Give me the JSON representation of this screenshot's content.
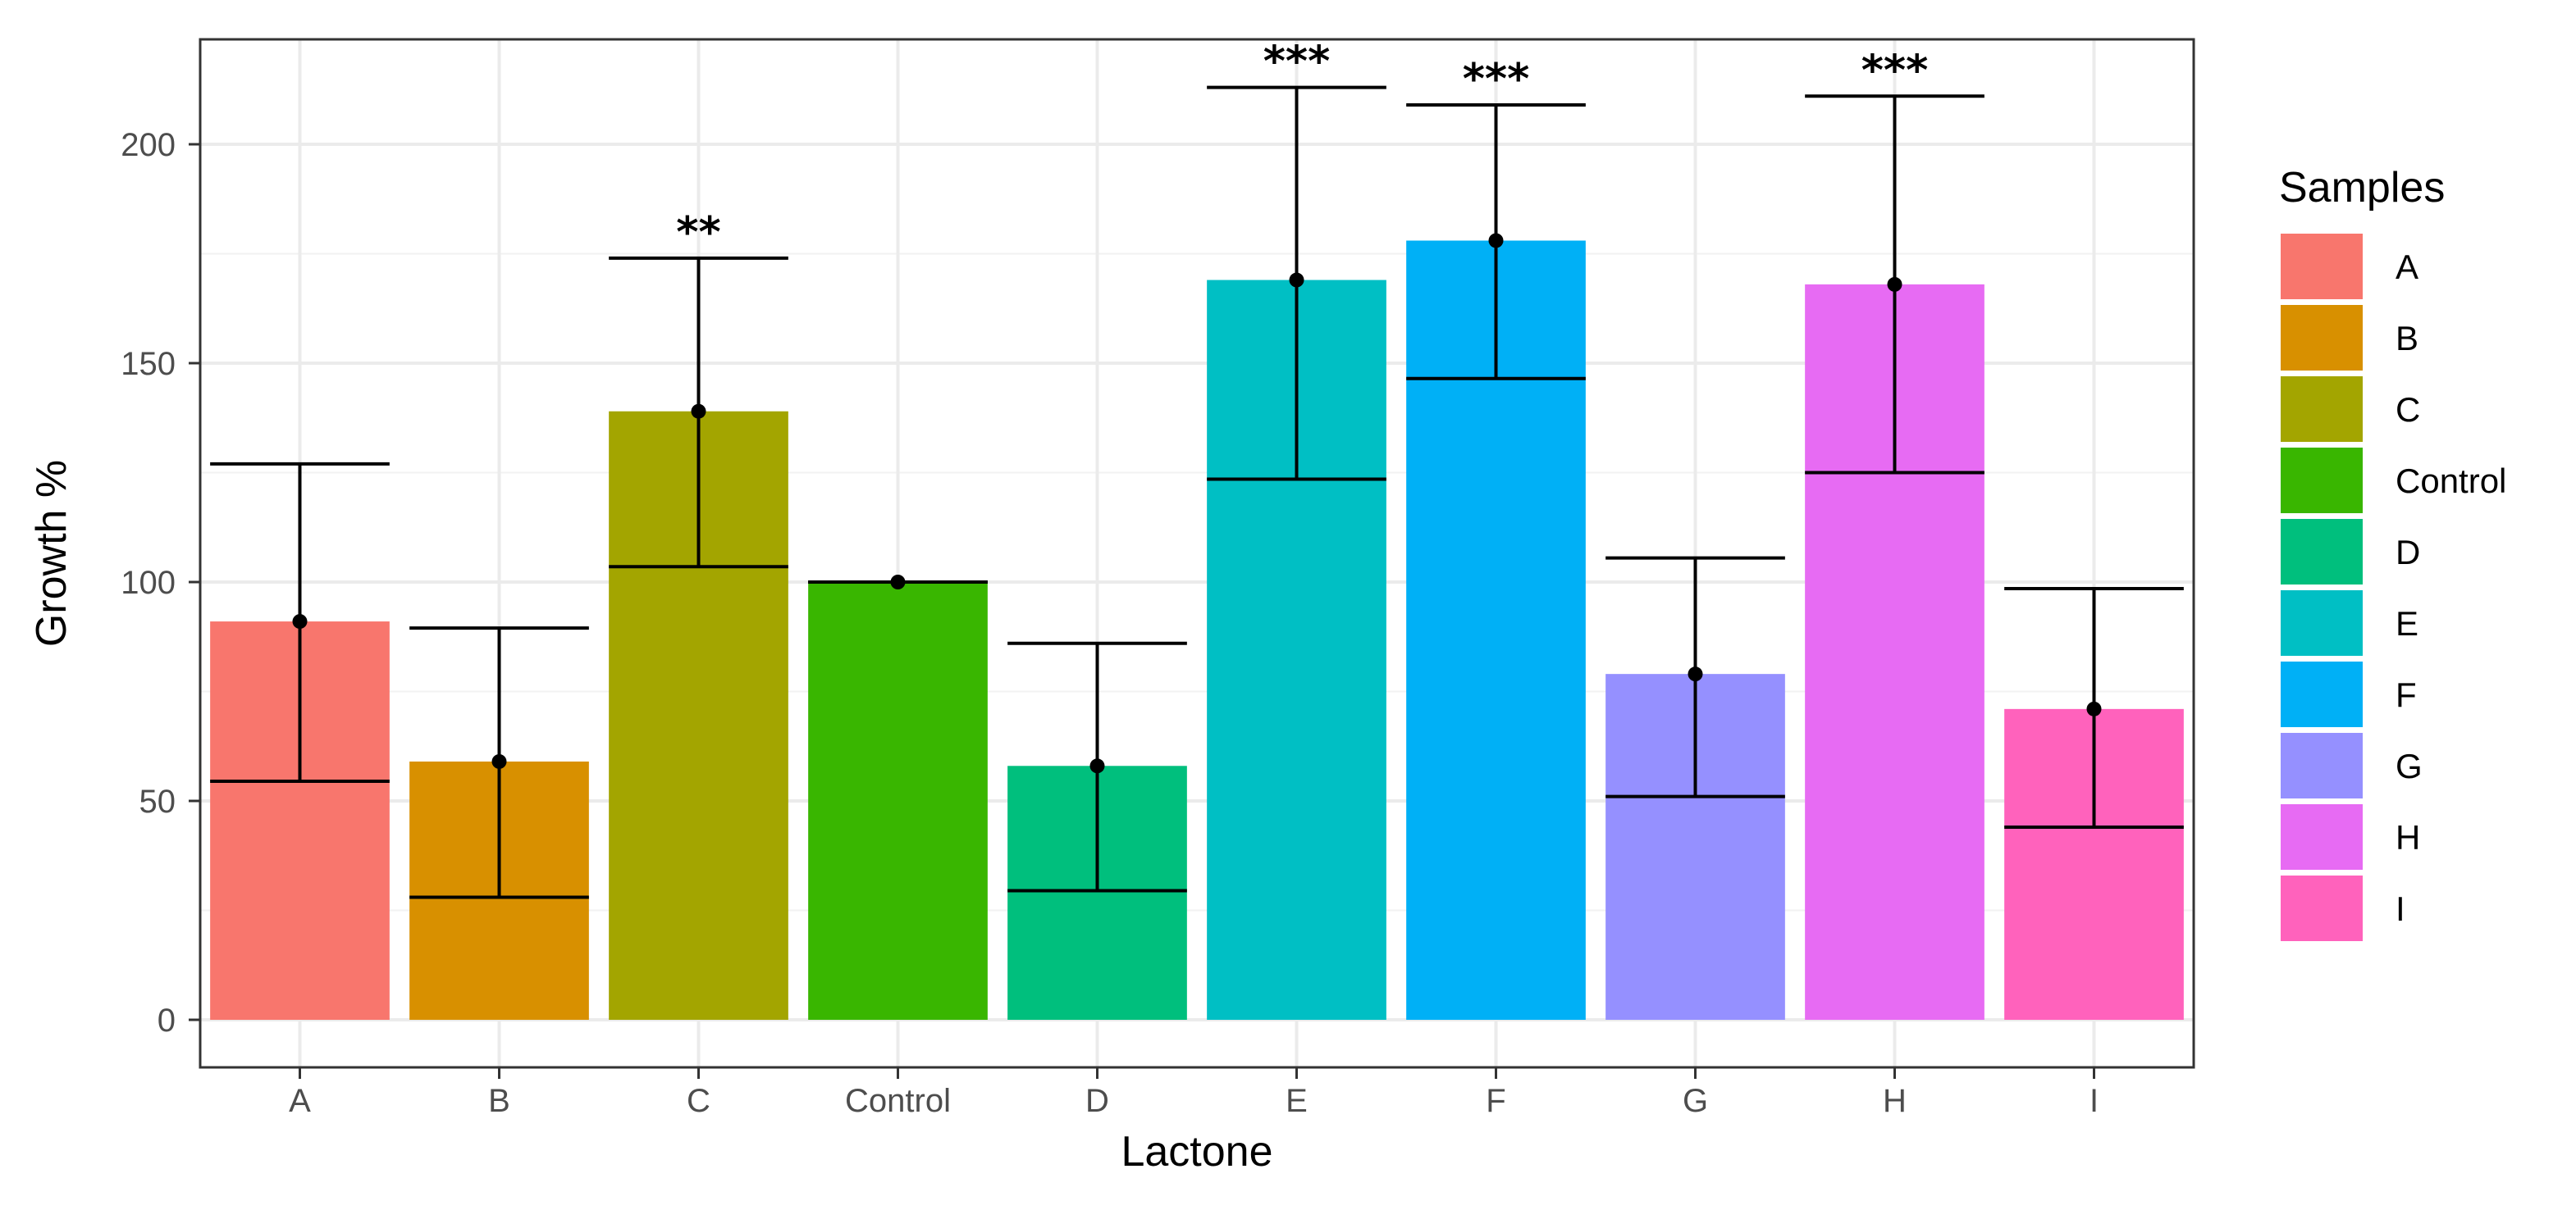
{
  "chart_data": {
    "type": "bar",
    "title": "",
    "xlabel": "Lactone",
    "ylabel": "Growth %",
    "ylim": [
      -10,
      225
    ],
    "yticks": [
      0,
      50,
      100,
      150,
      200
    ],
    "grid": true,
    "legend": {
      "title": "Samples",
      "position": "right"
    },
    "categories": [
      "A",
      "B",
      "C",
      "Control",
      "D",
      "E",
      "F",
      "G",
      "H",
      "I"
    ],
    "values": [
      91,
      59,
      139,
      100,
      58,
      169,
      178,
      79,
      168,
      71
    ],
    "error_lower": [
      54.5,
      28,
      103.5,
      100,
      29.5,
      123.5,
      146.5,
      51,
      125,
      44
    ],
    "error_upper": [
      127,
      89.5,
      174,
      100,
      86,
      213,
      209,
      105.5,
      211,
      98.5
    ],
    "significance": [
      "",
      "",
      "**",
      "",
      "",
      "***",
      "***",
      "",
      "***",
      ""
    ],
    "colors": [
      "#F8766D",
      "#D89000",
      "#A3A500",
      "#39B600",
      "#00BF7D",
      "#00BFC4",
      "#00B0F6",
      "#9590FF",
      "#E76BF3",
      "#FF62BC"
    ]
  }
}
